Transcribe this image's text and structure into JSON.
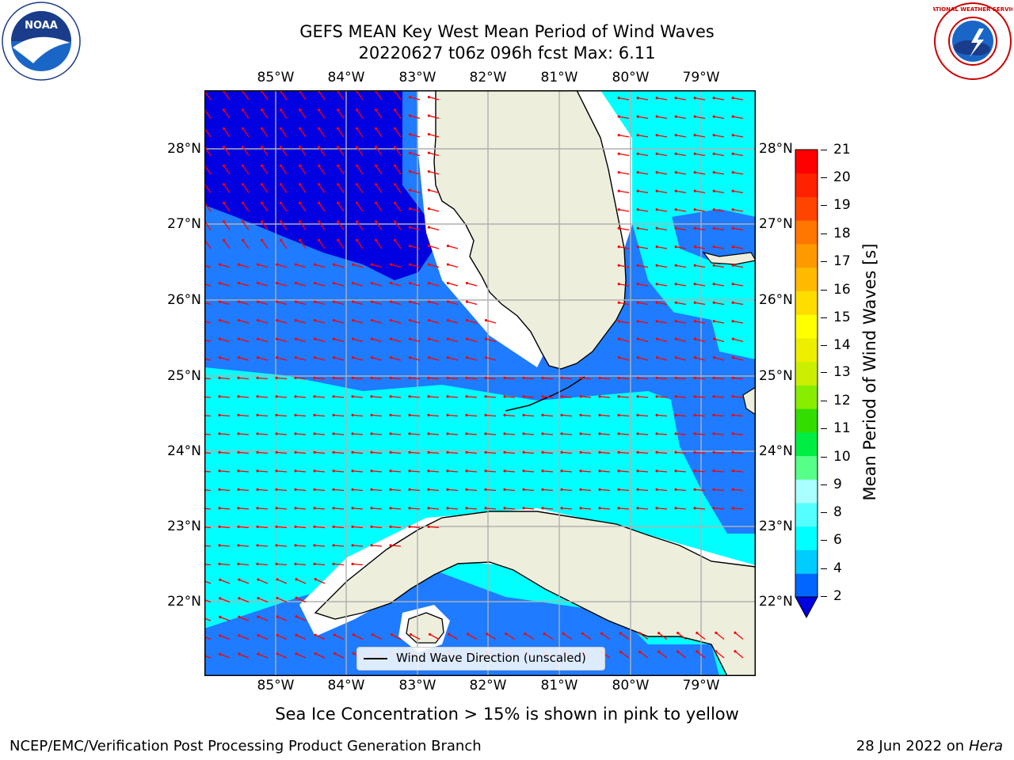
{
  "title": {
    "line1": "GEFS MEAN Key West Mean Period of Wind Waves",
    "line2": "20220627 t06z 096h fcst   Max: 6.11"
  },
  "logos": {
    "left": "NOAA",
    "right": "NATIONAL WEATHER SERVICE"
  },
  "map": {
    "lon_labels": [
      "85°W",
      "84°W",
      "83°W",
      "82°W",
      "81°W",
      "80°W",
      "79°W"
    ],
    "lat_labels": [
      "28°N",
      "27°N",
      "26°N",
      "25°N",
      "24°N",
      "23°N",
      "22°N"
    ],
    "colors": {
      "ocean_dark": "#0000e0",
      "ocean_mid": "#1f7bff",
      "ocean_light": "#00ffff",
      "land": "#eeeedd",
      "arrow": "#ff0000",
      "grid": "#b0b0b0"
    }
  },
  "legend": {
    "label": "Wind Wave Direction (unscaled)"
  },
  "colorbar": {
    "label": "Mean Period of Wind Waves [s]",
    "ticks": [
      "21",
      "20",
      "19",
      "18",
      "17",
      "16",
      "15",
      "14",
      "13",
      "12",
      "11",
      "10",
      "9",
      "8",
      "6",
      "4",
      "2"
    ],
    "colors": [
      "#0066ff",
      "#00ccff",
      "#00ffff",
      "#55ffff",
      "#aaffff",
      "#55ff88",
      "#00ee44",
      "#33dd00",
      "#88ee00",
      "#ccee00",
      "#eeee00",
      "#ffff00",
      "#ffdd00",
      "#ffbb00",
      "#ff9900",
      "#ff7700",
      "#ff4400",
      "#ff2200",
      "#ff0000"
    ]
  },
  "notes": {
    "sea_ice": "Sea Ice Concentration > 15% is shown in pink to yellow",
    "branch": "NCEP/EMC/Verification Post Processing Product Generation Branch",
    "date": "28 Jun 2022 on",
    "system": "Hera"
  }
}
